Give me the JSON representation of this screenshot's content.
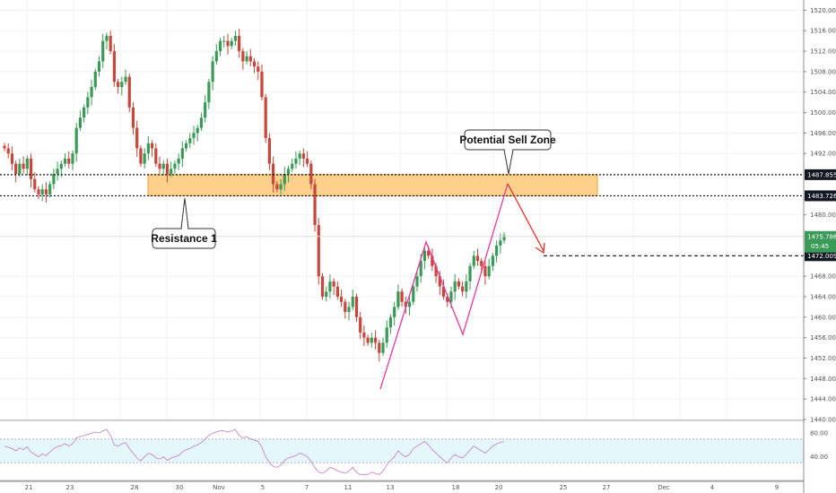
{
  "chart_data": {
    "type": "candlestick",
    "title": "",
    "ylim": [
      1440,
      1522
    ],
    "y_ticks": [
      "1520.000",
      "1516.000",
      "1512.000",
      "1508.000",
      "1504.000",
      "1500.000",
      "1496.000",
      "1492.000",
      "1480.000",
      "1468.000",
      "1464.000",
      "1460.000",
      "1456.000",
      "1452.000",
      "1448.000",
      "1444.000",
      "1440.000"
    ],
    "x_ticks": [
      "21",
      "23",
      "28",
      "30",
      "Nov",
      "5",
      "7",
      "11",
      "13",
      "18",
      "20",
      "25",
      "27",
      "Dec",
      "4",
      "9"
    ],
    "levels": {
      "resistance_upper": 1487.855,
      "resistance_lower": 1483.726,
      "target": 1472.009,
      "current": 1475.786,
      "countdown": "05:45"
    },
    "zone": {
      "low": 1483.726,
      "high": 1487.855
    },
    "annotations": [
      {
        "text": "Potential Sell Zone"
      },
      {
        "text": "Resistance 1"
      }
    ],
    "closes": [
      1493,
      1492,
      1490,
      1488,
      1490,
      1489,
      1491,
      1487,
      1485,
      1484,
      1485,
      1484,
      1486,
      1488,
      1489,
      1490,
      1491,
      1490,
      1492,
      1497,
      1499,
      1501,
      1503,
      1505,
      1508,
      1510,
      1514,
      1515,
      1512,
      1506,
      1505,
      1506,
      1507,
      1501,
      1497,
      1493,
      1490,
      1492,
      1494,
      1493,
      1490,
      1489,
      1490,
      1488,
      1489,
      1490,
      1491,
      1493,
      1494,
      1495,
      1496,
      1497,
      1499,
      1502,
      1506,
      1510,
      1512,
      1514,
      1514,
      1513,
      1514,
      1515,
      1512,
      1510,
      1511,
      1510,
      1509,
      1508,
      1503,
      1495,
      1490,
      1486,
      1485,
      1486,
      1488,
      1489,
      1490,
      1491,
      1492,
      1491,
      1490,
      1486,
      1478,
      1468,
      1464,
      1465,
      1467,
      1466,
      1464,
      1463,
      1461,
      1462,
      1464,
      1460,
      1457,
      1456,
      1455,
      1456,
      1455,
      1453,
      1455,
      1458,
      1460,
      1462,
      1465,
      1463,
      1462,
      1463,
      1466,
      1468,
      1471,
      1473,
      1472,
      1470,
      1468,
      1466,
      1464,
      1463,
      1465,
      1467,
      1466,
      1465,
      1467,
      1470,
      1472,
      1471,
      1470,
      1468,
      1470,
      1472,
      1474,
      1475,
      1476
    ],
    "rsi": {
      "ylim": [
        0,
        100
      ],
      "y_ticks": [
        "80.00",
        "40.00"
      ],
      "band": [
        30,
        70
      ],
      "values": [
        58,
        56,
        54,
        50,
        55,
        52,
        57,
        48,
        44,
        40,
        45,
        42,
        48,
        54,
        57,
        59,
        62,
        58,
        62,
        72,
        74,
        76,
        78,
        80,
        82,
        80,
        84,
        86,
        76,
        60,
        58,
        62,
        64,
        54,
        46,
        38,
        33,
        40,
        46,
        44,
        38,
        36,
        40,
        34,
        38,
        40,
        42,
        48,
        52,
        54,
        58,
        60,
        64,
        70,
        76,
        80,
        82,
        84,
        84,
        82,
        84,
        86,
        76,
        72,
        74,
        70,
        68,
        66,
        56,
        40,
        30,
        24,
        22,
        26,
        34,
        38,
        40,
        42,
        46,
        44,
        40,
        32,
        22,
        14,
        12,
        16,
        22,
        20,
        16,
        14,
        12,
        16,
        22,
        14,
        10,
        10,
        10,
        14,
        12,
        10,
        16,
        26,
        34,
        40,
        50,
        44,
        40,
        44,
        54,
        58,
        62,
        66,
        60,
        52,
        46,
        40,
        34,
        30,
        38,
        44,
        40,
        38,
        44,
        52,
        58,
        54,
        50,
        46,
        52,
        58,
        62,
        64,
        66
      ]
    }
  }
}
